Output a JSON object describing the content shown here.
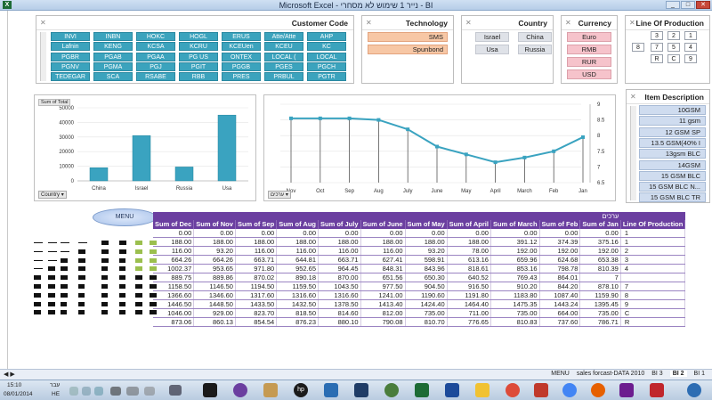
{
  "window": {
    "title": "Microsoft Excel - נייר 1 שימוש לא מסחרי - BI",
    "app_icon": "excel-icon"
  },
  "slicers": {
    "customer_code": {
      "title": "Customer Code",
      "items": [
        "INVI",
        "INBN",
        "HOKC",
        "HOGL",
        "ERUS",
        "Atte/Atte",
        "AHP",
        "Lafnin",
        "KENG",
        "KCSA",
        "KCRU",
        "KCEUen",
        "KCEU",
        "KC",
        "PGBR",
        "PGAB",
        "PGAA",
        "PG US",
        "ONTEX",
        "LOCAL (",
        "LOCAL",
        "PGNV",
        "PGMA",
        "PGJ",
        "PGIT",
        "PGGB",
        "PGES",
        "PGCH",
        "TEDEGAR",
        "SCA",
        "RSABE",
        "RBB",
        "PRES",
        "PRBUL",
        "PGTR"
      ]
    },
    "technology": {
      "title": "Technology",
      "items": [
        "SMS",
        "Spunbond"
      ]
    },
    "country": {
      "title": "Country",
      "items": [
        "Israel",
        "China",
        "Usa",
        "Russia"
      ]
    },
    "currency": {
      "title": "Currency",
      "items": [
        "Euro",
        "RMB",
        "RUR",
        "USD"
      ]
    },
    "line_of_production": {
      "title": "Line Of Production",
      "items": [
        "3",
        "2",
        "1",
        "8",
        "7",
        "5",
        "4",
        "R",
        "C",
        "9"
      ]
    },
    "item_description": {
      "title": "Item Description",
      "items": [
        "10GSM",
        "11 gsm",
        "12 GSM SP",
        "13.5 GSM(40% I",
        "13gsm BLC",
        "14GSM",
        "15 GSM BLC",
        "15 GSM BLC N...",
        "15 GSM BLC TR"
      ]
    }
  },
  "chart_data": [
    {
      "type": "bar",
      "ylabel_tag": "Sum of Total",
      "filter_button": "Country",
      "categories": [
        "China",
        "Israel",
        "Russia",
        "Usa"
      ],
      "values": [
        9000,
        31000,
        9500,
        45000
      ],
      "ylim": [
        0,
        50000
      ],
      "yticks": [
        "0",
        "10000",
        "20000",
        "30000",
        "40000",
        "50000"
      ],
      "color": "#3aa3c0"
    },
    {
      "type": "line",
      "filter_button": "ערכים",
      "categories": [
        "Nov",
        "Oct",
        "Sep",
        "Aug",
        "July",
        "June",
        "May",
        "April",
        "March",
        "Feb",
        "Jan"
      ],
      "values": [
        8.55,
        8.55,
        8.55,
        8.5,
        8.2,
        7.65,
        7.4,
        7.15,
        7.3,
        7.5,
        7.95
      ],
      "ylim": [
        6.5,
        9
      ],
      "yticks": [
        "6.5",
        "7",
        "7.5",
        "8",
        "8.5",
        "9"
      ],
      "color": "#3aa3c0"
    },
    {
      "type": "table",
      "header_caption": "ערכים",
      "columns": [
        "Sum of Dec",
        "Sum of Nov",
        "Sum of Sep",
        "Sum of Aug",
        "Sum of July",
        "Sum of June",
        "Sum of May",
        "Sum of April",
        "Sum of March",
        "Sum of Feb",
        "Sum of Jan",
        "Line Of Production"
      ],
      "rows": [
        [
          "0.00",
          "0.00",
          "0.00",
          "0.00",
          "0.00",
          "0.00",
          "0.00",
          "0.00",
          "0.00",
          "0.00",
          "0.00",
          "1"
        ],
        [
          "188.00",
          "188.00",
          "188.00",
          "188.00",
          "188.00",
          "188.00",
          "188.00",
          "188.00",
          "391.12",
          "374.39",
          "375.16",
          "1"
        ],
        [
          "116.00",
          "93.20",
          "116.00",
          "116.00",
          "116.00",
          "116.00",
          "93.20",
          "78.00",
          "192.00",
          "192.00",
          "192.00",
          "2"
        ],
        [
          "664.26",
          "664.26",
          "663.71",
          "644.81",
          "663.71",
          "627.41",
          "598.91",
          "613.16",
          "659.96",
          "624.68",
          "653.38",
          "3"
        ],
        [
          "1002.37",
          "953.65",
          "971.80",
          "952.65",
          "964.45",
          "848.31",
          "843.96",
          "818.61",
          "853.16",
          "798.78",
          "810.39",
          "4"
        ],
        [
          "889.75",
          "889.86",
          "870.02",
          "890.18",
          "870.00",
          "651.56",
          "650.30",
          "640.52",
          "769.43",
          "864.01",
          "7",
          ""
        ],
        [
          "1158.50",
          "1146.50",
          "1194.50",
          "1159.50",
          "1043.50",
          "977.50",
          "904.50",
          "916.50",
          "910.20",
          "844.20",
          "878.10",
          "7"
        ],
        [
          "1366.60",
          "1346.60",
          "1317.60",
          "1316.60",
          "1316.60",
          "1241.00",
          "1190.60",
          "1191.80",
          "1183.80",
          "1087.40",
          "1159.90",
          "8"
        ],
        [
          "1446.50",
          "1448.50",
          "1433.50",
          "1432.50",
          "1378.50",
          "1413.40",
          "1424.40",
          "1464.40",
          "1475.35",
          "1443.24",
          "1395.45",
          "9"
        ],
        [
          "1046.00",
          "929.00",
          "823.70",
          "818.50",
          "814.60",
          "812.00",
          "735.00",
          "711.00",
          "735.00",
          "664.00",
          "735.00",
          "C"
        ],
        [
          "873.06",
          "860.13",
          "854.54",
          "876.23",
          "880.10",
          "790.08",
          "810.70",
          "776.65",
          "810.83",
          "737.60",
          "786.71",
          "R"
        ]
      ]
    }
  ],
  "menu_button": "MENU",
  "status": {
    "tabs": [
      "MENU",
      "sales forcast-DATA 2010",
      "BI 3",
      "BI 2",
      "BI 1"
    ],
    "active_tab": "BI 2"
  },
  "taskbar": {
    "time": "15:10",
    "date": "08/01/2014",
    "lang": "HE",
    "day": "עבר"
  }
}
